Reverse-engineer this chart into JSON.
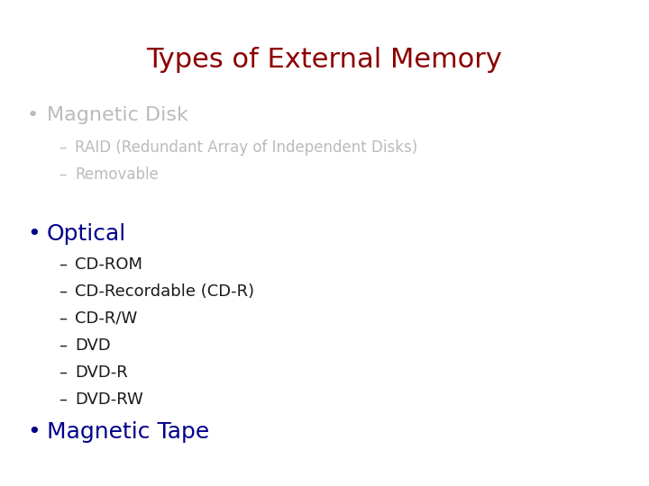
{
  "title": "Types of External Memory",
  "title_color": "#8B0000",
  "title_fontsize": 22,
  "background_color": "#FFFFFF",
  "bullet1_text": "Magnetic Disk",
  "bullet1_color": "#BBBBBB",
  "bullet1_fontsize": 16,
  "bullet1_subitems": [
    "RAID (Redundant Array of Independent Disks)",
    "Removable"
  ],
  "bullet1_sub_color": "#BBBBBB",
  "bullet1_sub_fontsize": 12,
  "bullet2_text": "Optical",
  "bullet2_color": "#00008B",
  "bullet2_fontsize": 18,
  "bullet2_subitems": [
    "CD-ROM",
    "CD-Recordable (CD-R)",
    "CD-R/W",
    "DVD",
    "DVD-R",
    "DVD-RW"
  ],
  "bullet2_sub_color": "#1a1a1a",
  "bullet2_sub_fontsize": 13,
  "bullet3_text": "Magnetic Tape",
  "bullet3_color": "#00008B",
  "bullet3_fontsize": 18
}
